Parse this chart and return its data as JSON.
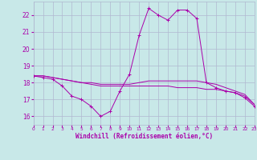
{
  "xlabel": "Windchill (Refroidissement éolien,°C)",
  "xlim": [
    0,
    23
  ],
  "ylim": [
    15.5,
    22.8
  ],
  "yticks": [
    16,
    17,
    18,
    19,
    20,
    21,
    22
  ],
  "xticks": [
    0,
    1,
    2,
    3,
    4,
    5,
    6,
    7,
    8,
    9,
    10,
    11,
    12,
    13,
    14,
    15,
    16,
    17,
    18,
    19,
    20,
    21,
    22,
    23
  ],
  "background_color": "#c8e8e8",
  "grid_color": "#b0b8d0",
  "line_color": "#aa00aa",
  "lines": [
    {
      "x": [
        0,
        1,
        2,
        3,
        4,
        5,
        6,
        7,
        8,
        9,
        10,
        11,
        12,
        13,
        14,
        15,
        16,
        17,
        18,
        19,
        20,
        21,
        22,
        23
      ],
      "y": [
        18.4,
        18.3,
        18.2,
        17.8,
        17.2,
        17.0,
        16.6,
        16.0,
        16.3,
        17.5,
        18.5,
        20.8,
        22.4,
        22.0,
        21.7,
        22.3,
        22.3,
        21.8,
        18.0,
        17.7,
        17.5,
        17.4,
        17.1,
        16.6
      ],
      "marker": true
    },
    {
      "x": [
        0,
        1,
        2,
        3,
        4,
        5,
        6,
        7,
        8,
        9,
        10,
        11,
        12,
        13,
        14,
        15,
        16,
        17,
        18,
        19,
        20,
        21,
        22,
        23
      ],
      "y": [
        18.4,
        18.4,
        18.3,
        18.2,
        18.1,
        18.0,
        18.0,
        17.9,
        17.9,
        17.9,
        17.9,
        18.0,
        18.1,
        18.1,
        18.1,
        18.1,
        18.1,
        18.1,
        18.0,
        17.9,
        17.7,
        17.5,
        17.3,
        16.7
      ],
      "marker": false
    },
    {
      "x": [
        0,
        1,
        2,
        3,
        4,
        5,
        6,
        7,
        8,
        9,
        10,
        11,
        12,
        13,
        14,
        15,
        16,
        17,
        18,
        19,
        20,
        21,
        22,
        23
      ],
      "y": [
        18.4,
        18.4,
        18.3,
        18.2,
        18.1,
        18.0,
        17.9,
        17.8,
        17.8,
        17.8,
        17.8,
        17.8,
        17.8,
        17.8,
        17.8,
        17.7,
        17.7,
        17.7,
        17.6,
        17.6,
        17.5,
        17.4,
        17.2,
        16.7
      ],
      "marker": false
    }
  ]
}
